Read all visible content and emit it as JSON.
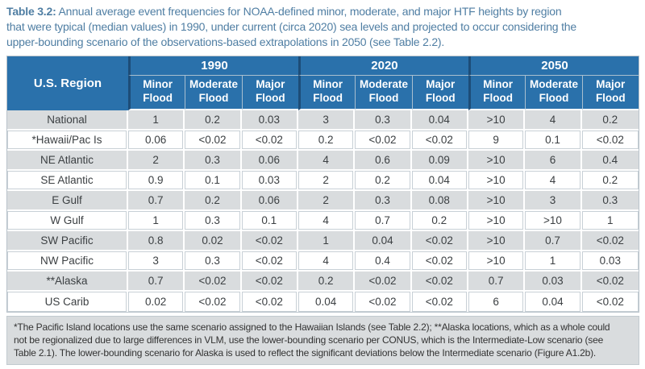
{
  "caption": {
    "label": "Table 3.2:",
    "text": "Annual average event frequencies for NOAA-defined minor, moderate, and major HTF heights by region\nthat were typical (median values) in 1990, under current (circa 2020) sea levels and projected to occur considering the\nupper-bounding scenario of the observations-based extrapolations in 2050 (see Table 2.2)."
  },
  "table": {
    "region_header": "U.S. Region",
    "year_groups": [
      "1990",
      "2020",
      "2050"
    ],
    "sub_headers": [
      "Minor\nFlood",
      "Moderate\nFlood",
      "Major\nFlood"
    ],
    "rows": [
      {
        "region": "National",
        "values": [
          "1",
          "0.2",
          "0.03",
          "3",
          "0.3",
          "0.04",
          ">10",
          "4",
          "0.2"
        ]
      },
      {
        "region": "*Hawaii/Pac Is",
        "values": [
          "0.06",
          "<0.02",
          "<0.02",
          "0.2",
          "<0.02",
          "<0.02",
          "9",
          "0.1",
          "<0.02"
        ]
      },
      {
        "region": "NE Atlantic",
        "values": [
          "2",
          "0.3",
          "0.06",
          "4",
          "0.6",
          "0.09",
          ">10",
          "6",
          "0.4"
        ]
      },
      {
        "region": "SE Atlantic",
        "values": [
          "0.9",
          "0.1",
          "0.03",
          "2",
          "0.2",
          "0.04",
          ">10",
          "4",
          "0.2"
        ]
      },
      {
        "region": "E Gulf",
        "values": [
          "0.7",
          "0.2",
          "0.06",
          "2",
          "0.3",
          "0.08",
          ">10",
          "3",
          "0.3"
        ]
      },
      {
        "region": "W Gulf",
        "values": [
          "1",
          "0.3",
          "0.1",
          "4",
          "0.7",
          "0.2",
          ">10",
          ">10",
          "1"
        ]
      },
      {
        "region": "SW Pacific",
        "values": [
          "0.8",
          "0.02",
          "<0.02",
          "1",
          "0.04",
          "<0.02",
          ">10",
          "0.7",
          "<0.02"
        ]
      },
      {
        "region": "NW Pacific",
        "values": [
          "3",
          "0.3",
          "<0.02",
          "4",
          "0.4",
          "<0.02",
          ">10",
          "1",
          "0.03"
        ]
      },
      {
        "region": "**Alaska",
        "values": [
          "0.7",
          "<0.02",
          "<0.02",
          "0.2",
          "<0.02",
          "<0.02",
          "0.7",
          "0.03",
          "<0.02"
        ]
      },
      {
        "region": "US Carib",
        "values": [
          "0.02",
          "<0.02",
          "<0.02",
          "0.04",
          "<0.02",
          "<0.02",
          "6",
          "0.04",
          "<0.02"
        ]
      }
    ]
  },
  "footnote": {
    "text": "*The Pacific Island locations use the same scenario assigned to the Hawaiian Islands (see Table 2.2); **Alaska locations, which as a whole could\nnot be regionalized due to large differences in VLM, use the lower-bounding scenario per CONUS, which is the Intermediate-Low scenario (see\nTable 2.1). The lower-bounding scenario for Alaska is used to reflect the significant deviations below the Intermediate scenario (Figure A1.2b)."
  },
  "colors": {
    "header_blue": "#2a71ab",
    "divider_navy": "#1d4d78",
    "row_stripe_gray": "#d9dcde",
    "caption_blue": "#4f7ea3",
    "body_text": "#3c4043"
  }
}
